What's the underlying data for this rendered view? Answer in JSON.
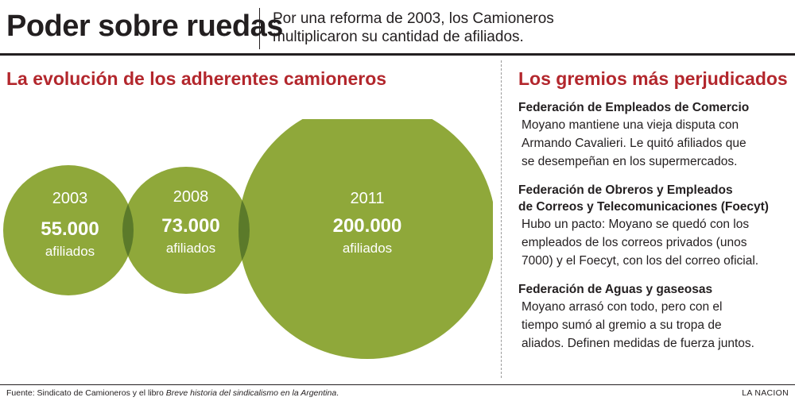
{
  "header": {
    "title": "Poder sobre ruedas",
    "subtitle": "Por una reforma de 2003, los Camioneros multiplicaron su cantidad de afiliados."
  },
  "chart_data": {
    "type": "bubble",
    "title": "La evolución de los adherentes camioneros",
    "categories": [
      "2003",
      "2008",
      "2011"
    ],
    "values": [
      55000,
      73000,
      200000
    ],
    "value_labels": [
      "55.000",
      "73.000",
      "200.000"
    ],
    "unit_label": "afiliados",
    "colors": {
      "bubble": "#8fa83a",
      "overlap": "#5b7a2a",
      "text": "#ffffff"
    }
  },
  "right": {
    "heading": "Los gremios más perjudicados",
    "unions": [
      {
        "name_lines": [
          "Federación de Empleados de Comercio"
        ],
        "desc_lines": [
          "Moyano mantiene una vieja disputa con",
          "Armando Cavalieri. Le quitó afiliados que",
          "se desempeñan en los supermercados."
        ]
      },
      {
        "name_lines": [
          "Federación de Obreros y Empleados",
          "de Correos y Telecomunicaciones (Foecyt)"
        ],
        "desc_lines": [
          "Hubo un pacto: Moyano se quedó con los",
          "empleados de los correos privados (unos",
          "7000) y el Foecyt, con los del correo oficial."
        ]
      },
      {
        "name_lines": [
          "Federación de Aguas y gaseosas"
        ],
        "desc_lines": [
          "Moyano arrasó con todo, pero con el",
          "tiempo sumó al gremio a su tropa de",
          "aliados. Definen medidas de fuerza juntos."
        ]
      }
    ]
  },
  "footer": {
    "source_prefix": "Fuente: Sindicato de Camioneros y el libro ",
    "source_book": "Breve historia del sindicalismo en la Argentina",
    "source_suffix": ".",
    "brand": "LA NACION"
  }
}
